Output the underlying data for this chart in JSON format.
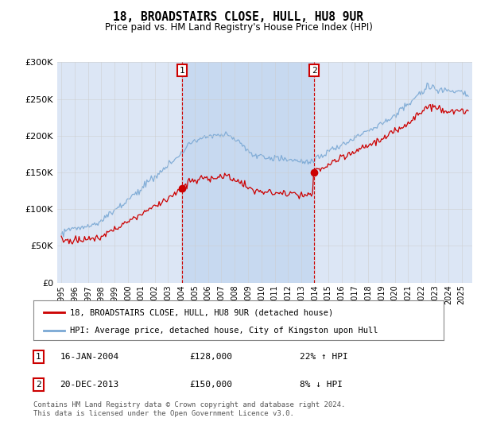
{
  "title": "18, BROADSTAIRS CLOSE, HULL, HU8 9UR",
  "subtitle": "Price paid vs. HM Land Registry's House Price Index (HPI)",
  "background_color": "#ffffff",
  "plot_bg_color": "#dce6f5",
  "shade_color": "#c5d8f0",
  "grid_color": "#cccccc",
  "sale1_year": 2004.042,
  "sale2_year": 2013.958,
  "sale1_price": 128000,
  "sale2_price": 150000,
  "red_line_color": "#cc0000",
  "blue_line_color": "#7aa8d4",
  "vline_color": "#cc0000",
  "ylim": [
    0,
    300000
  ],
  "yticks": [
    0,
    50000,
    100000,
    150000,
    200000,
    250000,
    300000
  ],
  "xstart": 1995,
  "xend": 2025,
  "legend_line1": "18, BROADSTAIRS CLOSE, HULL, HU8 9UR (detached house)",
  "legend_line2": "HPI: Average price, detached house, City of Kingston upon Hull",
  "footnote": "Contains HM Land Registry data © Crown copyright and database right 2024.\nThis data is licensed under the Open Government Licence v3.0.",
  "table_row1": [
    "1",
    "16-JAN-2004",
    "£128,000",
    "22% ↑ HPI"
  ],
  "table_row2": [
    "2",
    "20-DEC-2013",
    "£150,000",
    "8% ↓ HPI"
  ]
}
